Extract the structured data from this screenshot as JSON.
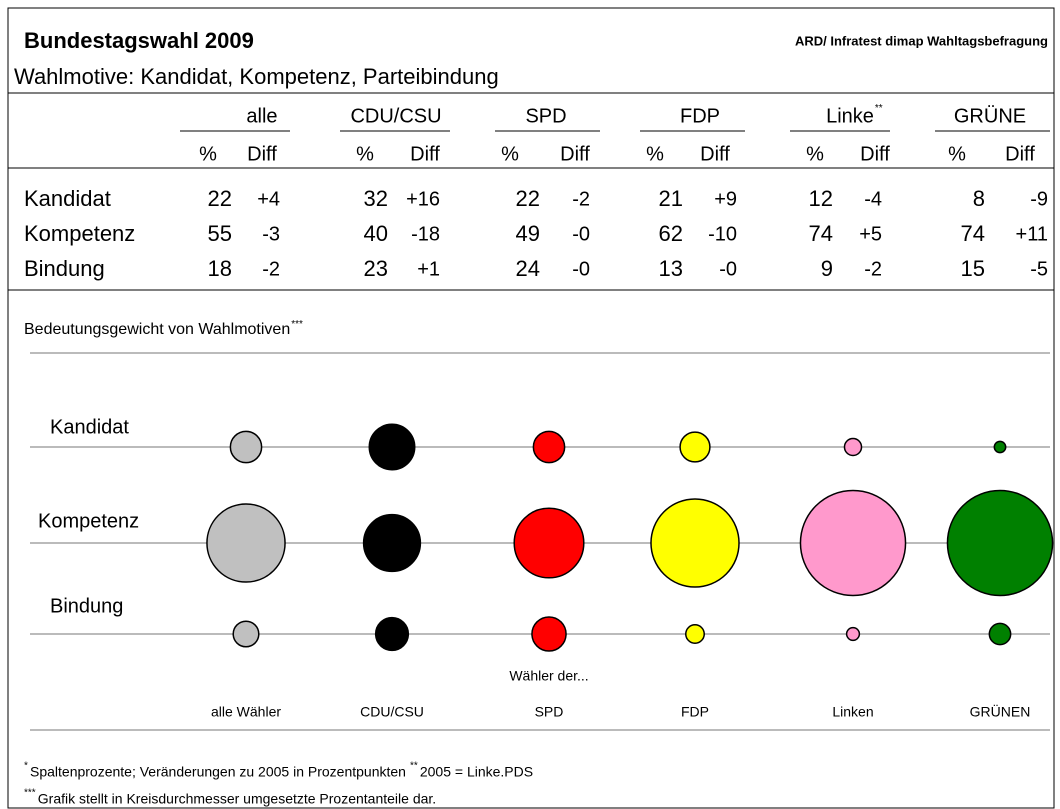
{
  "title": "Bundestagswahl 2009",
  "source": "ARD/ Infratest dimap Wahltagsbefragung",
  "subtitle": "Wahlmotive: Kandidat, Kompetenz, Parteibindung",
  "table": {
    "groups": [
      {
        "name": "alle"
      },
      {
        "name": "CDU/CSU"
      },
      {
        "name": "SPD"
      },
      {
        "name": "FDP"
      },
      {
        "name": "Linke",
        "note": "**"
      },
      {
        "name": "GRÜNE"
      }
    ],
    "subheaders": [
      "%",
      "Diff"
    ],
    "rows": [
      {
        "label": "Kandidat",
        "pct": [
          22,
          32,
          22,
          21,
          12,
          8
        ],
        "diff": [
          "+4",
          "+16",
          "-2",
          "+9",
          "-4",
          "-9"
        ]
      },
      {
        "label": "Kompetenz",
        "pct": [
          55,
          40,
          49,
          62,
          74,
          74
        ],
        "diff": [
          "-3",
          "-18",
          "-0",
          "-10",
          "+5",
          "+11"
        ]
      },
      {
        "label": "Bindung",
        "pct": [
          18,
          23,
          24,
          13,
          9,
          15
        ],
        "diff": [
          "-2",
          "+1",
          "-0",
          "-0",
          "-2",
          "-5"
        ]
      }
    ]
  },
  "graphic": {
    "title": "Bedeutungsgewicht von Wahlmotiven",
    "note": "***",
    "caption": "Wähler der...",
    "columns": [
      "alle Wähler",
      "CDU/CSU",
      "SPD",
      "FDP",
      "Linken",
      "GRÜNEN"
    ],
    "colors": [
      "#c0c0c0",
      "#000000",
      "#ff0000",
      "#ffff00",
      "#ff99cc",
      "#008000"
    ]
  },
  "footnotes": [
    {
      "mark": "*",
      "text": "Spaltenprozente; Veränderungen zu 2005 in Prozentpunkten"
    },
    {
      "mark": "**",
      "text": "2005 = Linke.PDS"
    },
    {
      "mark": "***",
      "text": "Grafik stellt in Kreisdurchmesser umgesetzte Prozentanteile dar."
    }
  ]
}
